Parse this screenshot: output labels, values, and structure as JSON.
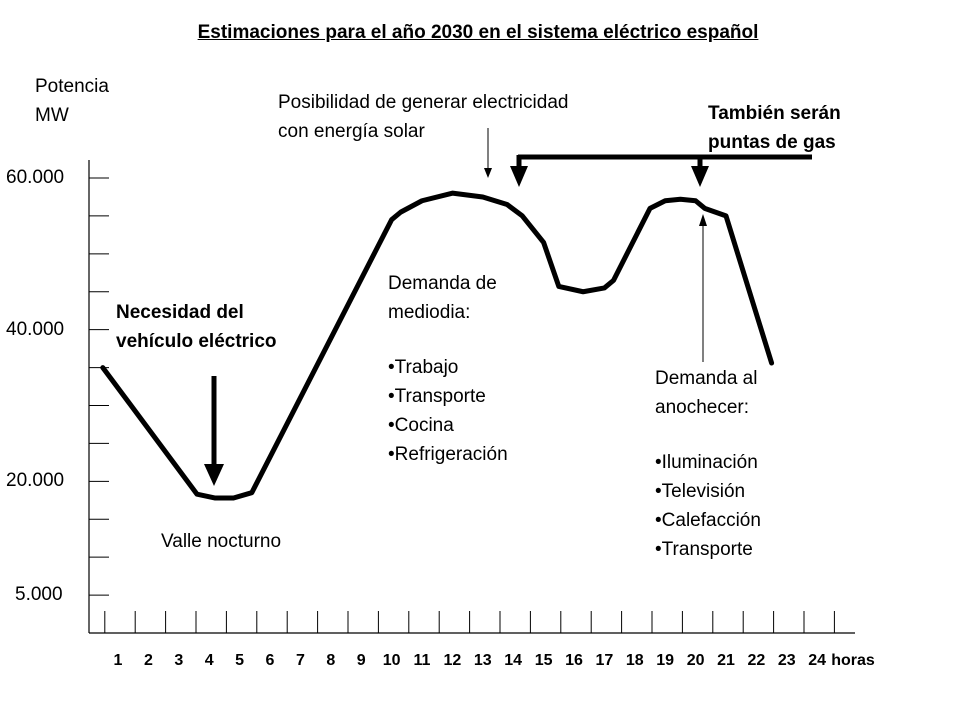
{
  "chart_data": {
    "type": "line",
    "title": "Estimaciones para el año 2030 en el sistema eléctrico español",
    "ylabel": [
      "Potencia",
      "MW"
    ],
    "xlabel": "horas",
    "x_ticks": [
      "1",
      "2",
      "3",
      "4",
      "5",
      "6",
      "7",
      "8",
      "9",
      "10",
      "11",
      "12",
      "13",
      "14",
      "15",
      "16",
      "17",
      "18",
      "19",
      "20",
      "21",
      "22",
      "23",
      "24"
    ],
    "y_ticks": [
      "60.000",
      "40.000",
      "20.000",
      "5.000"
    ],
    "grid": false,
    "series": [
      {
        "x": [
          0.5,
          3.6,
          4.2,
          4.8,
          5.4,
          10.0,
          10.3,
          11.0,
          12.0,
          13.0,
          13.8,
          14.3,
          15.0,
          15.5,
          16.3,
          17.0,
          17.3,
          18.5,
          19.0,
          19.5,
          20.0,
          20.3,
          21.0,
          22.5
        ],
        "y": [
          35000,
          18300,
          17800,
          17800,
          18500,
          54500,
          55500,
          57000,
          58000,
          57500,
          56500,
          55000,
          51500,
          45700,
          45000,
          45500,
          46500,
          56000,
          57000,
          57200,
          57000,
          56000,
          55000,
          35600
        ]
      }
    ],
    "ylim": [
      0,
      65000
    ],
    "xlim": [
      0.5,
      25
    ]
  },
  "annotations": {
    "necesidad": [
      "Necesidad del",
      "vehículo eléctrico"
    ],
    "valle": "Valle nocturno",
    "solar": [
      "Posibilidad de generar electricidad",
      "con energía solar"
    ],
    "gas": [
      "También serán",
      "puntas de gas"
    ],
    "mediodia": {
      "heading": [
        "Demanda de",
        "mediodia:"
      ],
      "items": [
        "Trabajo",
        "Transporte",
        "Cocina",
        "Refrigeración"
      ]
    },
    "anochecer": {
      "heading": [
        "Demanda al",
        "anochecer:"
      ],
      "items": [
        "Iluminación",
        "Televisión",
        "Calefacción",
        "Transporte"
      ]
    }
  }
}
